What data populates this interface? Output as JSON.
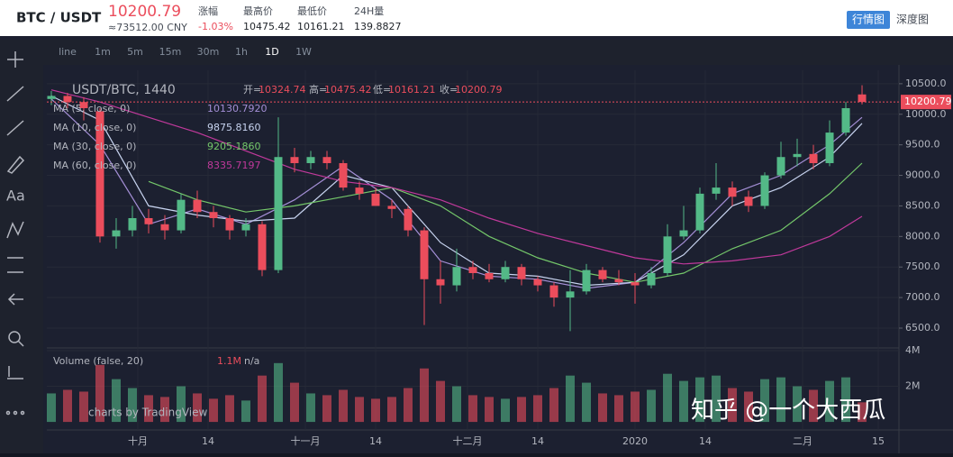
{
  "header": {
    "pair": "BTC / USDT",
    "price": 10200.79,
    "cny": "≈73512.00 CNY",
    "stats": [
      {
        "label": "涨幅",
        "value": "-1.03%"
      },
      {
        "label": "最高价",
        "value": 10475.42
      },
      {
        "label": "最低价",
        "value": 10161.21
      },
      {
        "label": "24H量",
        "value": 139.8827
      }
    ],
    "tabs": [
      "行情图",
      "深度图"
    ]
  },
  "toolbar": {
    "intervals": [
      "line",
      "1m",
      "5m",
      "15m",
      "30m",
      "1h",
      "1D",
      "1W"
    ]
  },
  "sidebar": {
    "text_tool": "Aa"
  },
  "chart_data": [
    {
      "type": "candlestick",
      "title": "USDT/BTC, 1440",
      "ohlc_labels": [
        "开=",
        "高=",
        "低=",
        "收="
      ],
      "up_color": "#53b987",
      "down_color": "#eb4d5c",
      "x": [
        0,
        3,
        6,
        9,
        12,
        15,
        18,
        21,
        24,
        27,
        30,
        33,
        36,
        39,
        42,
        45,
        48,
        51,
        54,
        57,
        60,
        63,
        66,
        69,
        72,
        75,
        78,
        81,
        84,
        87,
        90,
        93,
        96,
        99,
        102,
        105,
        108,
        111,
        114,
        117,
        120,
        123,
        126,
        129,
        132,
        135,
        138,
        141,
        144,
        147,
        150
      ],
      "open": [
        10250,
        10300,
        10200,
        10050,
        8000,
        8100,
        8300,
        8200,
        8100,
        8600,
        8400,
        8300,
        8100,
        8200,
        7450,
        9300,
        9200,
        9300,
        9200,
        8800,
        8700,
        8500,
        8450,
        8100,
        7300,
        7200,
        7500,
        7400,
        7300,
        7500,
        7300,
        7200,
        7000,
        7100,
        7450,
        7300,
        7250,
        7200,
        7400,
        8000,
        8100,
        8700,
        8800,
        8650,
        8500,
        9000,
        9300,
        9350,
        9200,
        9700,
        10324.74
      ],
      "high": [
        10380,
        10350,
        10280,
        10100,
        8300,
        8500,
        8450,
        8350,
        8700,
        8750,
        8500,
        8350,
        8300,
        8250,
        9950,
        9450,
        9400,
        9400,
        9250,
        8900,
        8800,
        8600,
        8500,
        8150,
        7600,
        7800,
        7600,
        7550,
        7600,
        7550,
        7350,
        7250,
        7450,
        7550,
        7500,
        7450,
        7400,
        7500,
        8200,
        8500,
        8800,
        9200,
        8900,
        8750,
        9050,
        9550,
        9600,
        9500,
        9900,
        10200,
        10475.42
      ],
      "low": [
        10150,
        10100,
        9900,
        7900,
        7800,
        8000,
        8050,
        7950,
        8050,
        8300,
        8150,
        7950,
        8000,
        7350,
        7400,
        9050,
        9100,
        9100,
        8750,
        8600,
        8500,
        8300,
        8000,
        6550,
        6900,
        7100,
        7300,
        7250,
        7250,
        7200,
        7100,
        6850,
        6450,
        7050,
        7250,
        7200,
        6900,
        7150,
        7350,
        7950,
        8050,
        8600,
        8500,
        8400,
        8450,
        8950,
        9150,
        9100,
        9150,
        9650,
        10161.21
      ],
      "close": [
        10300,
        10200,
        10100,
        8000,
        8100,
        8300,
        8200,
        8100,
        8600,
        8400,
        8300,
        8100,
        8200,
        7450,
        9300,
        9200,
        9300,
        9200,
        8800,
        8700,
        8500,
        8450,
        8100,
        7300,
        7200,
        7500,
        7400,
        7300,
        7500,
        7300,
        7200,
        7000,
        7100,
        7450,
        7300,
        7250,
        7200,
        7400,
        8000,
        8100,
        8700,
        8800,
        8650,
        8500,
        9000,
        9300,
        9350,
        9200,
        9700,
        10100,
        10200.79
      ],
      "ylim": [
        6190,
        10690
      ],
      "yticks": [
        {
          "value": 6500,
          "label": "6500.0"
        },
        {
          "value": 7000,
          "label": "7000.0"
        },
        {
          "value": 7500,
          "label": "7500.0"
        },
        {
          "value": 8000,
          "label": "8000.0"
        },
        {
          "value": 8500,
          "label": "8500.0"
        },
        {
          "value": 9000,
          "label": "9000.0"
        },
        {
          "value": 9500,
          "label": "9500.0"
        },
        {
          "value": 10000,
          "label": "10000.0"
        },
        {
          "value": 10500,
          "label": "10500.0"
        }
      ],
      "xlim": [
        -0.83,
        156.83
      ],
      "xticks": [
        {
          "value": 16,
          "label": "十月"
        },
        {
          "value": 29,
          "label": "14"
        },
        {
          "value": 47,
          "label": "十一月"
        },
        {
          "value": 60,
          "label": "14"
        },
        {
          "value": 77,
          "label": "十二月"
        },
        {
          "value": 90,
          "label": "14"
        },
        {
          "value": 108,
          "label": "2020"
        },
        {
          "value": 121,
          "label": "14"
        },
        {
          "value": 139,
          "label": "二月"
        },
        {
          "value": 153,
          "label": "15"
        }
      ],
      "lines": [
        {
          "name": "MA (5, close, 0)",
          "color": "#a48fd6",
          "legend_value": "10130.7920",
          "x": [
            0,
            9,
            18,
            27,
            36,
            45,
            54,
            63,
            72,
            81,
            90,
            99,
            108,
            117,
            126,
            135,
            144,
            150
          ],
          "values": [
            10250,
            9500,
            8200,
            8450,
            8200,
            8600,
            9150,
            8600,
            7600,
            7350,
            7300,
            7150,
            7250,
            7900,
            8700,
            9000,
            9500,
            9950
          ]
        },
        {
          "name": "MA (10, close, 0)",
          "color": "#c7d3ef",
          "legend_value": "9875.8160",
          "x": [
            0,
            9,
            18,
            27,
            36,
            45,
            54,
            63,
            72,
            81,
            90,
            99,
            108,
            117,
            126,
            135,
            144,
            150
          ],
          "values": [
            10300,
            9900,
            8500,
            8350,
            8250,
            8300,
            9000,
            8800,
            7900,
            7400,
            7350,
            7200,
            7250,
            7700,
            8500,
            8800,
            9300,
            9850
          ]
        },
        {
          "name": "MA (30, close, 0)",
          "color": "#74c76a",
          "legend_value": "9205.1860",
          "x": [
            0,
            9,
            18,
            27,
            36,
            45,
            54,
            63,
            72,
            81,
            90,
            99,
            108,
            117,
            126,
            135,
            144,
            150
          ],
          "values": [
            null,
            null,
            8900,
            8600,
            8400,
            8500,
            8650,
            8800,
            8500,
            8000,
            7650,
            7400,
            7250,
            7400,
            7800,
            8100,
            8700,
            9200
          ]
        },
        {
          "name": "MA (60, close, 0)",
          "color": "#c0399b",
          "legend_value": "8335.7197",
          "x": [
            0,
            9,
            18,
            27,
            36,
            45,
            54,
            63,
            72,
            81,
            90,
            99,
            108,
            117,
            126,
            135,
            144,
            150
          ],
          "values": [
            10400,
            10200,
            9950,
            9700,
            9400,
            9100,
            8900,
            8800,
            8600,
            8300,
            8050,
            7850,
            7650,
            7550,
            7600,
            7700,
            8000,
            8330
          ]
        }
      ]
    },
    {
      "type": "bar",
      "title": "Volume (false, 20)",
      "legend_value": "1.1M",
      "legend_extra": "n/a",
      "x": [
        0,
        3,
        6,
        9,
        12,
        15,
        18,
        21,
        24,
        27,
        30,
        33,
        36,
        39,
        42,
        45,
        48,
        51,
        54,
        57,
        60,
        63,
        66,
        69,
        72,
        75,
        78,
        81,
        84,
        87,
        90,
        93,
        96,
        99,
        102,
        105,
        108,
        111,
        114,
        117,
        120,
        123,
        126,
        129,
        132,
        135,
        138,
        141,
        144,
        147,
        150
      ],
      "values": [
        1.6,
        1.8,
        1.7,
        3.2,
        2.4,
        1.9,
        1.5,
        1.4,
        2.0,
        1.6,
        1.3,
        1.5,
        1.2,
        2.6,
        3.3,
        2.2,
        1.6,
        1.5,
        1.8,
        1.4,
        1.3,
        1.4,
        1.9,
        3.0,
        2.3,
        2.0,
        1.5,
        1.4,
        1.3,
        1.4,
        1.5,
        1.9,
        2.6,
        2.2,
        1.6,
        1.5,
        1.7,
        1.8,
        2.7,
        2.3,
        2.5,
        2.6,
        1.9,
        1.7,
        2.4,
        2.5,
        2.0,
        1.8,
        2.3,
        2.5,
        1.1
      ],
      "ylim": [
        -0.4,
        4.1
      ],
      "yticks": [
        {
          "value": 2,
          "label": "2M"
        },
        {
          "value": 4,
          "label": "4M"
        }
      ],
      "xlim": [
        -0.83,
        156.83
      ]
    }
  ],
  "watermarks": [
    "charts by TradingView",
    "知乎 @一个大西瓜"
  ]
}
